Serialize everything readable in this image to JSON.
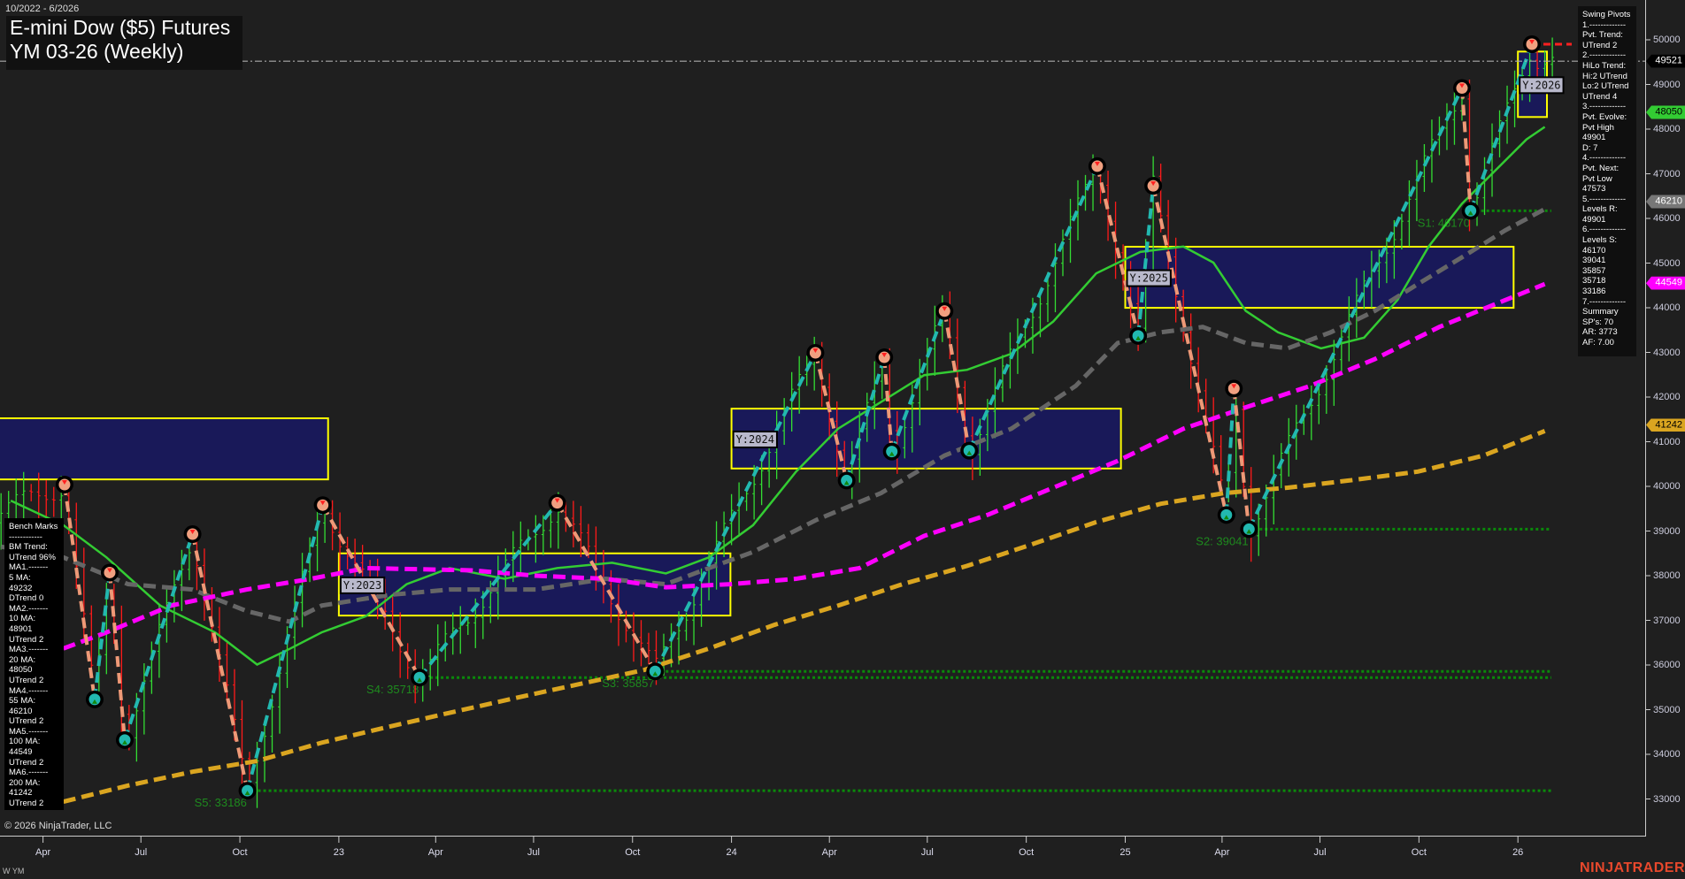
{
  "header": {
    "date_range": "10/2022 - 6/2026",
    "title": "E-mini Dow ($5) Futures",
    "subtitle": "YM 03-26 (Weekly)"
  },
  "bench_marks": {
    "lines": [
      "Bench Marks",
      "------------",
      "BM Trend:",
      "UTrend 96%",
      "MA1.-------",
      "5 MA:",
      "49232",
      "DTrend 0",
      "MA2.-------",
      "10 MA:",
      "48901",
      "UTrend 2",
      "MA3.-------",
      "20 MA:",
      "48050",
      "UTrend 2",
      "MA4.-------",
      "55 MA:",
      "46210",
      "UTrend 2",
      "MA5.-------",
      "100 MA:",
      "44549",
      "UTrend 2",
      "MA6.-------",
      "200 MA:",
      "41242",
      "UTrend 2"
    ]
  },
  "swing_pivots": {
    "lines": [
      "Swing Pivots",
      "1.-------------",
      "Pvt. Trend:",
      "UTrend 2",
      "2.-------------",
      "HiLo Trend:",
      "Hi:2 UTrend",
      "Lo:2 UTrend",
      "UTrend 4",
      "3.-------------",
      "Pvt. Evolve:",
      "Pvt High",
      "49901",
      "D: 7",
      "4.-------------",
      "Pvt. Next:",
      "Pvt Low",
      "47573",
      "5.-------------",
      "Levels R:",
      "49901",
      "6.-------------",
      "Levels S:",
      "46170",
      "39041",
      "35857",
      "35718",
      "33186",
      "7.-------------",
      "Summary",
      "SP's: 70",
      "AR: 3773",
      "AF: 7.00"
    ]
  },
  "footer": {
    "copyright": "© 2026 NinjaTrader, LLC",
    "symbol": "W YM",
    "brand": "NINJATRADER"
  },
  "chart_data": {
    "type": "candlestick",
    "instrument": "YM 03-26",
    "period": "Weekly",
    "ylim": [
      32200,
      50300
    ],
    "y_ticks": [
      33000,
      34000,
      35000,
      36000,
      37000,
      38000,
      39000,
      40000,
      41000,
      42000,
      43000,
      44000,
      45000,
      46000,
      47000,
      48000,
      49000,
      50000
    ],
    "x_ticks": [
      {
        "label": "Apr",
        "date": "2022-04-01"
      },
      {
        "label": "Jul",
        "date": "2022-07-01"
      },
      {
        "label": "Oct",
        "date": "2022-10-01"
      },
      {
        "label": "23",
        "date": "2023-01-01"
      },
      {
        "label": "Apr",
        "date": "2023-04-01"
      },
      {
        "label": "Jul",
        "date": "2023-07-01"
      },
      {
        "label": "Oct",
        "date": "2023-10-01"
      },
      {
        "label": "24",
        "date": "2024-01-01"
      },
      {
        "label": "Apr",
        "date": "2024-04-01"
      },
      {
        "label": "Jul",
        "date": "2024-07-01"
      },
      {
        "label": "Oct",
        "date": "2024-10-01"
      },
      {
        "label": "25",
        "date": "2025-01-01"
      },
      {
        "label": "Apr",
        "date": "2025-04-01"
      },
      {
        "label": "Jul",
        "date": "2025-07-01"
      },
      {
        "label": "Oct",
        "date": "2025-10-01"
      },
      {
        "label": "26",
        "date": "2026-01-01"
      }
    ],
    "last_price": 49521,
    "price_tags": [
      {
        "value": "49521",
        "bg": "#000000",
        "fg": "#ffffff"
      },
      {
        "value": "48050",
        "bg": "#33cc33",
        "fg": "#000000"
      },
      {
        "value": "46210",
        "bg": "#777777",
        "fg": "#ffffff"
      },
      {
        "value": "44549",
        "bg": "#ff00ff",
        "fg": "#ffffff"
      },
      {
        "value": "41242",
        "bg": "#daa520",
        "fg": "#000000"
      }
    ],
    "swing_pivots": [
      {
        "date": "2022-04-21",
        "price": 40040,
        "type": "high"
      },
      {
        "date": "2022-05-19",
        "price": 35230,
        "type": "low"
      },
      {
        "date": "2022-06-02",
        "price": 38070,
        "type": "high"
      },
      {
        "date": "2022-06-16",
        "price": 34320,
        "type": "low"
      },
      {
        "date": "2022-08-18",
        "price": 38930,
        "type": "high"
      },
      {
        "date": "2022-10-08",
        "price": 33186,
        "type": "low"
      },
      {
        "date": "2022-12-17",
        "price": 39580,
        "type": "high"
      },
      {
        "date": "2023-03-17",
        "price": 35718,
        "type": "low"
      },
      {
        "date": "2023-07-23",
        "price": 39630,
        "type": "high"
      },
      {
        "date": "2023-10-22",
        "price": 35857,
        "type": "low"
      },
      {
        "date": "2024-03-19",
        "price": 42990,
        "type": "high"
      },
      {
        "date": "2024-04-17",
        "price": 40130,
        "type": "low"
      },
      {
        "date": "2024-05-22",
        "price": 42890,
        "type": "high"
      },
      {
        "date": "2024-05-29",
        "price": 40780,
        "type": "low"
      },
      {
        "date": "2024-07-17",
        "price": 43925,
        "type": "high"
      },
      {
        "date": "2024-08-09",
        "price": 40800,
        "type": "low"
      },
      {
        "date": "2024-12-06",
        "price": 47170,
        "type": "high"
      },
      {
        "date": "2025-01-13",
        "price": 43370,
        "type": "low"
      },
      {
        "date": "2025-01-27",
        "price": 46730,
        "type": "high"
      },
      {
        "date": "2025-04-05",
        "price": 39360,
        "type": "low"
      },
      {
        "date": "2025-04-12",
        "price": 42190,
        "type": "high"
      },
      {
        "date": "2025-04-26",
        "price": 39041,
        "type": "low"
      },
      {
        "date": "2025-11-10",
        "price": 48920,
        "type": "high"
      },
      {
        "date": "2025-11-18",
        "price": 46170,
        "type": "low"
      },
      {
        "date": "2026-01-14",
        "price": 49901,
        "type": "high"
      }
    ],
    "support_levels": [
      {
        "label": "S1: 46170",
        "price": 46170,
        "from": "2025-11-18"
      },
      {
        "label": "S2: 39041",
        "price": 39041,
        "from": "2025-04-26"
      },
      {
        "label": "S3: 35857",
        "price": 35857,
        "from": "2023-10-22"
      },
      {
        "label": "S4: 35718",
        "price": 35718,
        "from": "2023-03-17"
      },
      {
        "label": "S5: 33186",
        "price": 33186,
        "from": "2022-10-08"
      }
    ],
    "resistance_level": {
      "price": 49901,
      "from": "2026-01-14"
    },
    "year_boxes": [
      {
        "label": "",
        "from": "2022-01-01",
        "to": "2022-12-22",
        "high": 41525,
        "low": 40156
      },
      {
        "label": "Y:2023",
        "from": "2023-01-01",
        "to": "2023-12-31",
        "high": 38500,
        "low": 37107
      },
      {
        "label": "Y:2024",
        "from": "2024-01-01",
        "to": "2024-12-28",
        "high": 41740,
        "low": 40400
      },
      {
        "label": "Y:2025",
        "from": "2025-01-01",
        "to": "2025-12-28",
        "high": 45366,
        "low": 43998
      },
      {
        "label": "Y:2026",
        "from": "2026-01-01",
        "to": "2026-01-28",
        "high": 49736,
        "low": 48271
      }
    ],
    "moving_averages": [
      {
        "name": "20 MA",
        "color": "#33cc33",
        "style": "solid",
        "points": [
          [
            "2022-03-02",
            39680
          ],
          [
            "2022-04-20",
            39130
          ],
          [
            "2022-05-30",
            38410
          ],
          [
            "2022-07-19",
            37330
          ],
          [
            "2022-09-08",
            36730
          ],
          [
            "2022-10-17",
            36010
          ],
          [
            "2022-11-17",
            36370
          ],
          [
            "2022-12-16",
            36730
          ],
          [
            "2023-01-26",
            37090
          ],
          [
            "2023-03-05",
            37810
          ],
          [
            "2023-04-14",
            38170
          ],
          [
            "2023-06-04",
            37930
          ],
          [
            "2023-07-23",
            38170
          ],
          [
            "2023-09-12",
            38290
          ],
          [
            "2023-11-01",
            38050
          ],
          [
            "2023-12-11",
            38410
          ],
          [
            "2024-01-21",
            39130
          ],
          [
            "2024-03-01",
            40330
          ],
          [
            "2024-04-09",
            41290
          ],
          [
            "2024-05-19",
            41890
          ],
          [
            "2024-06-28",
            42490
          ],
          [
            "2024-08-07",
            42610
          ],
          [
            "2024-09-17",
            42970
          ],
          [
            "2024-10-26",
            43690
          ],
          [
            "2024-12-05",
            44770
          ],
          [
            "2025-01-15",
            45250
          ],
          [
            "2025-02-24",
            45370
          ],
          [
            "2025-03-24",
            45010
          ],
          [
            "2025-04-23",
            43930
          ],
          [
            "2025-05-23",
            43450
          ],
          [
            "2025-07-02",
            43090
          ],
          [
            "2025-08-11",
            43330
          ],
          [
            "2025-09-11",
            44170
          ],
          [
            "2025-10-10",
            45370
          ],
          [
            "2025-11-10",
            46330
          ],
          [
            "2025-12-10",
            47050
          ],
          [
            "2026-01-09",
            47770
          ],
          [
            "2026-01-26",
            48050
          ]
        ]
      },
      {
        "name": "55 MA",
        "color": "#666666",
        "style": "dashed",
        "points": [
          [
            "2022-02-21",
            38650
          ],
          [
            "2022-04-20",
            38410
          ],
          [
            "2022-06-19",
            37810
          ],
          [
            "2022-08-18",
            37690
          ],
          [
            "2022-10-07",
            37210
          ],
          [
            "2022-11-16",
            36970
          ],
          [
            "2022-12-16",
            37330
          ],
          [
            "2023-02-17",
            37570
          ],
          [
            "2023-04-14",
            37690
          ],
          [
            "2023-07-03",
            37690
          ],
          [
            "2023-09-06",
            37930
          ],
          [
            "2023-11-01",
            37810
          ],
          [
            "2023-12-11",
            38170
          ],
          [
            "2024-01-21",
            38530
          ],
          [
            "2024-03-20",
            39250
          ],
          [
            "2024-05-19",
            39850
          ],
          [
            "2024-07-17",
            40690
          ],
          [
            "2024-09-17",
            41290
          ],
          [
            "2024-11-16",
            42250
          ],
          [
            "2024-12-25",
            43210
          ],
          [
            "2025-02-03",
            43450
          ],
          [
            "2025-03-14",
            43570
          ],
          [
            "2025-04-23",
            43210
          ],
          [
            "2025-06-01",
            43090
          ],
          [
            "2025-07-11",
            43450
          ],
          [
            "2025-08-21",
            43930
          ],
          [
            "2025-09-30",
            44530
          ],
          [
            "2025-11-10",
            45130
          ],
          [
            "2025-12-20",
            45730
          ],
          [
            "2026-01-26",
            46210
          ]
        ]
      },
      {
        "name": "100 MA",
        "color": "#ff00ff",
        "style": "dashed",
        "points": [
          [
            "2022-04-20",
            36370
          ],
          [
            "2022-05-30",
            36730
          ],
          [
            "2022-07-29",
            37330
          ],
          [
            "2022-10-07",
            37690
          ],
          [
            "2022-12-06",
            37930
          ],
          [
            "2023-01-26",
            38170
          ],
          [
            "2023-05-04",
            38120
          ],
          [
            "2023-07-03",
            38000
          ],
          [
            "2023-09-06",
            37930
          ],
          [
            "2023-11-01",
            37740
          ],
          [
            "2023-12-31",
            37810
          ],
          [
            "2024-03-01",
            37930
          ],
          [
            "2024-04-29",
            38170
          ],
          [
            "2024-06-28",
            38890
          ],
          [
            "2024-08-27",
            39370
          ],
          [
            "2024-10-26",
            39970
          ],
          [
            "2024-12-25",
            40570
          ],
          [
            "2025-02-24",
            41290
          ],
          [
            "2025-04-23",
            41770
          ],
          [
            "2025-06-22",
            42250
          ],
          [
            "2025-08-21",
            42850
          ],
          [
            "2025-10-20",
            43570
          ],
          [
            "2025-12-20",
            44170
          ],
          [
            "2026-01-26",
            44530
          ]
        ]
      },
      {
        "name": "200 MA",
        "color": "#daa520",
        "style": "dashed",
        "points": [
          [
            "2022-04-20",
            32940
          ],
          [
            "2022-06-19",
            33300
          ],
          [
            "2022-08-18",
            33610
          ],
          [
            "2022-10-17",
            33850
          ],
          [
            "2022-12-16",
            34260
          ],
          [
            "2023-02-17",
            34620
          ],
          [
            "2023-04-14",
            34930
          ],
          [
            "2023-06-14",
            35260
          ],
          [
            "2023-08-14",
            35580
          ],
          [
            "2023-10-12",
            35890
          ],
          [
            "2023-12-11",
            36370
          ],
          [
            "2024-02-10",
            36900
          ],
          [
            "2024-04-09",
            37330
          ],
          [
            "2024-06-08",
            37810
          ],
          [
            "2024-08-07",
            38220
          ],
          [
            "2024-10-06",
            38700
          ],
          [
            "2024-12-05",
            39200
          ],
          [
            "2025-02-03",
            39610
          ],
          [
            "2025-04-03",
            39850
          ],
          [
            "2025-06-01",
            39970
          ],
          [
            "2025-07-31",
            40140
          ],
          [
            "2025-09-30",
            40330
          ],
          [
            "2025-11-30",
            40690
          ],
          [
            "2026-01-26",
            41240
          ]
        ]
      }
    ]
  }
}
